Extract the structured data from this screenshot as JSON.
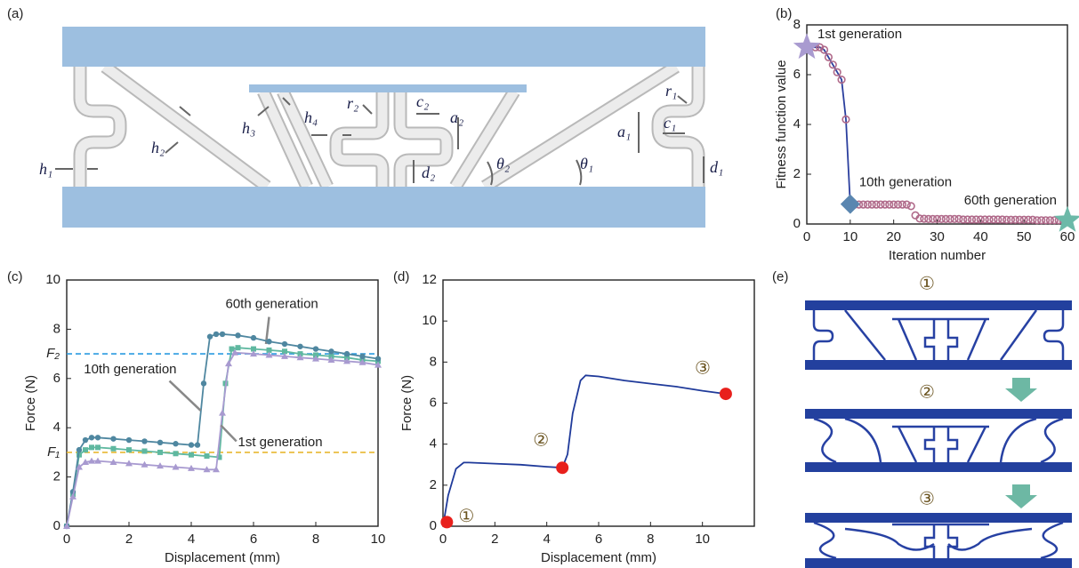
{
  "panel_labels": [
    "(a)",
    "(b)",
    "(c)",
    "(d)",
    "(e)"
  ],
  "diagram_a": {
    "labels": [
      "h₁",
      "h₂",
      "h₃",
      "h₄",
      "r₂",
      "c₂",
      "a₂",
      "d₂",
      "θ₂",
      "θ₁",
      "a₁",
      "c₁",
      "r₁",
      "d₁"
    ]
  },
  "diagram_e": {
    "states": [
      "①",
      "②",
      "③"
    ]
  },
  "chart_data": [
    {
      "type": "line",
      "xlabel": "Iteration number",
      "ylabel": "Fitness function value",
      "xlim": [
        0,
        60
      ],
      "ylim": [
        0,
        8
      ],
      "xticks": [
        0,
        10,
        20,
        30,
        40,
        50,
        60
      ],
      "yticks": [
        0,
        2,
        4,
        6,
        8
      ],
      "series": [
        {
          "color": "#2b3f9e",
          "marker": "none",
          "x": [
            1,
            2,
            3,
            4,
            5,
            6,
            7,
            8,
            9,
            10
          ],
          "values": [
            7.1,
            7.1,
            7.1,
            7.0,
            6.7,
            6.4,
            6.1,
            5.8,
            4.2,
            0.8
          ]
        },
        {
          "color": "#b06a8a",
          "marker": "open-circle",
          "line": false,
          "x": [
            2,
            3,
            4,
            5,
            6,
            7,
            8,
            9,
            10,
            11,
            12,
            13,
            14,
            15,
            16,
            17,
            18,
            19,
            20,
            21,
            22,
            23,
            24,
            25,
            26,
            27,
            28,
            29,
            30,
            31,
            32,
            33,
            34,
            35,
            36,
            37,
            38,
            39,
            40,
            41,
            42,
            43,
            44,
            45,
            46,
            47,
            48,
            49,
            50,
            51,
            52,
            53,
            54,
            55,
            56,
            57,
            58,
            59,
            60
          ],
          "values": [
            7.1,
            7.1,
            7.0,
            6.7,
            6.4,
            6.1,
            5.8,
            4.2,
            0.8,
            0.78,
            0.78,
            0.78,
            0.78,
            0.78,
            0.78,
            0.78,
            0.78,
            0.78,
            0.78,
            0.78,
            0.78,
            0.78,
            0.72,
            0.35,
            0.22,
            0.21,
            0.2,
            0.2,
            0.2,
            0.2,
            0.2,
            0.2,
            0.2,
            0.2,
            0.18,
            0.18,
            0.18,
            0.18,
            0.18,
            0.18,
            0.18,
            0.18,
            0.18,
            0.18,
            0.17,
            0.17,
            0.17,
            0.17,
            0.17,
            0.17,
            0.17,
            0.15,
            0.15,
            0.15,
            0.15,
            0.15,
            0.15,
            0.15,
            0.15
          ]
        }
      ],
      "highlights": [
        {
          "x": 0,
          "y": 7.1,
          "label": "1st generation",
          "color": "#a99bd0",
          "shape": "star"
        },
        {
          "x": 10,
          "y": 0.8,
          "label": "10th generation",
          "color": "#5a86b0",
          "shape": "diamond"
        },
        {
          "x": 60,
          "y": 0.15,
          "label": "60th generation",
          "color": "#6cb9a8",
          "shape": "star"
        }
      ]
    },
    {
      "type": "line",
      "xlabel": "Displacement (mm)",
      "ylabel": "Force (N)",
      "xlim": [
        0,
        10
      ],
      "ylim": [
        0,
        10
      ],
      "xticks": [
        0,
        2,
        4,
        6,
        8,
        10
      ],
      "yticks": [
        0,
        2,
        4,
        6,
        8,
        10
      ],
      "hlines": [
        {
          "value": 7,
          "label": "F₂",
          "color": "#2a9be0"
        },
        {
          "value": 3,
          "label": "F₁",
          "color": "#e8b830"
        }
      ],
      "series": [
        {
          "name": "60th generation",
          "color": "#5fb8a0",
          "marker": "square",
          "x": [
            0,
            0.2,
            0.4,
            0.6,
            0.8,
            1,
            1.5,
            2,
            2.5,
            3,
            3.5,
            4,
            4.5,
            4.9,
            5.1,
            5.3,
            5.5,
            6,
            6.5,
            7,
            7.5,
            8,
            8.5,
            9,
            9.5,
            10
          ],
          "values": [
            0,
            1.3,
            2.9,
            3.1,
            3.2,
            3.2,
            3.15,
            3.1,
            3.05,
            3.0,
            2.95,
            2.9,
            2.85,
            2.8,
            5.8,
            7.2,
            7.25,
            7.2,
            7.15,
            7.1,
            7.0,
            6.95,
            6.9,
            6.85,
            6.75,
            6.7
          ]
        },
        {
          "name": "10th generation",
          "color": "#4f87a0",
          "marker": "circle",
          "x": [
            0,
            0.2,
            0.4,
            0.6,
            0.8,
            1,
            1.5,
            2,
            2.5,
            3,
            3.5,
            4,
            4.2,
            4.4,
            4.6,
            4.8,
            5,
            5.5,
            6,
            6.5,
            7,
            7.5,
            8,
            8.5,
            9,
            9.5,
            10
          ],
          "values": [
            0,
            1.4,
            3.1,
            3.5,
            3.6,
            3.6,
            3.55,
            3.5,
            3.45,
            3.4,
            3.35,
            3.3,
            3.3,
            5.8,
            7.7,
            7.8,
            7.8,
            7.75,
            7.65,
            7.5,
            7.4,
            7.3,
            7.2,
            7.1,
            7.0,
            6.9,
            6.8
          ]
        },
        {
          "name": "1st generation",
          "color": "#a89ad0",
          "marker": "triangle",
          "x": [
            0,
            0.2,
            0.4,
            0.6,
            0.8,
            1,
            1.5,
            2,
            2.5,
            3,
            3.5,
            4,
            4.5,
            4.8,
            5.0,
            5.2,
            5.4,
            6,
            6.5,
            7,
            7.5,
            8,
            8.5,
            9,
            9.5,
            10
          ],
          "values": [
            0,
            1.2,
            2.4,
            2.6,
            2.65,
            2.65,
            2.6,
            2.55,
            2.5,
            2.45,
            2.4,
            2.35,
            2.3,
            2.3,
            4.6,
            6.6,
            7.05,
            7.0,
            6.95,
            6.9,
            6.85,
            6.8,
            6.75,
            6.7,
            6.65,
            6.55
          ]
        }
      ]
    },
    {
      "type": "line",
      "xlabel": "Displacement (mm)",
      "ylabel": "Force (N)",
      "xlim": [
        0,
        12
      ],
      "ylim": [
        0,
        12
      ],
      "xticks": [
        0,
        2,
        4,
        6,
        8,
        10
      ],
      "yticks": [
        0,
        2,
        4,
        6,
        8,
        10,
        12
      ],
      "series": [
        {
          "color": "#1f3a9a",
          "marker": "none",
          "x": [
            0,
            0.2,
            0.5,
            0.8,
            1,
            2,
            3,
            4,
            4.6,
            4.8,
            5,
            5.3,
            5.5,
            6,
            7,
            8,
            9,
            10,
            10.9
          ],
          "values": [
            0,
            1.5,
            2.8,
            3.1,
            3.1,
            3.05,
            3.0,
            2.9,
            2.85,
            3.5,
            5.5,
            7.1,
            7.35,
            7.3,
            7.1,
            6.95,
            6.8,
            6.6,
            6.45
          ]
        }
      ],
      "points": [
        {
          "x": 0.15,
          "y": 0.2,
          "label": "①",
          "color": "#e8201c"
        },
        {
          "x": 4.6,
          "y": 2.85,
          "label": "②",
          "color": "#e8201c"
        },
        {
          "x": 10.9,
          "y": 6.45,
          "label": "③",
          "color": "#e8201c"
        }
      ]
    }
  ]
}
